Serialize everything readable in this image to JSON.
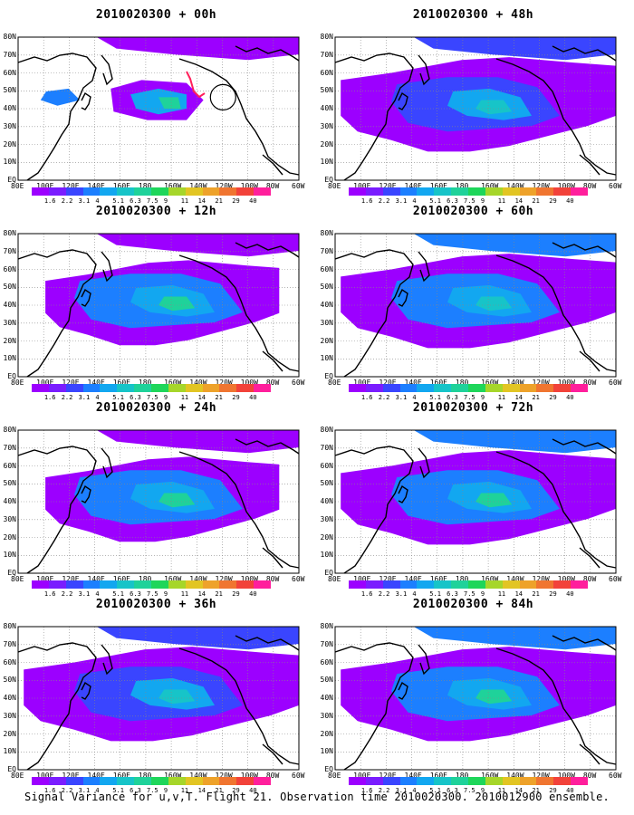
{
  "panels": [
    {
      "title": "2010020300 + 00h",
      "level": 0,
      "marker": true
    },
    {
      "title": "2010020300 + 48h",
      "level": 4
    },
    {
      "title": "2010020300 + 12h",
      "level": 1
    },
    {
      "title": "2010020300 + 60h",
      "level": 5
    },
    {
      "title": "2010020300 + 24h",
      "level": 2
    },
    {
      "title": "2010020300 + 72h",
      "level": 6
    },
    {
      "title": "2010020300 + 36h",
      "level": 3
    },
    {
      "title": "2010020300 + 84h",
      "level": 7
    }
  ],
  "lat_labels": [
    "80N",
    "70N",
    "60N",
    "50N",
    "40N",
    "30N",
    "20N",
    "10N",
    "EQ"
  ],
  "lon_labels": [
    "80E",
    "100E",
    "120E",
    "140E",
    "160E",
    "180",
    "160W",
    "140W",
    "120W",
    "100W",
    "80W",
    "60W"
  ],
  "colorbar": {
    "labels": [
      "1.6",
      "2.2",
      "3.1",
      "4",
      "5.1",
      "6.3",
      "7.5",
      "9",
      "11",
      "14",
      "21",
      "29",
      "40"
    ],
    "colors": [
      "#9c00ff",
      "#7a1dff",
      "#3a45ff",
      "#1c7fff",
      "#12a7f0",
      "#17c4c8",
      "#1fd29a",
      "#1ed65a",
      "#a6d62a",
      "#e2c523",
      "#eea22a",
      "#f07530",
      "#f2423a",
      "#ff1f9c"
    ]
  },
  "caption": "Signal Variance for u,v,T. Flight 21. Observation time 2010020300. 2010012900 ensemble."
}
